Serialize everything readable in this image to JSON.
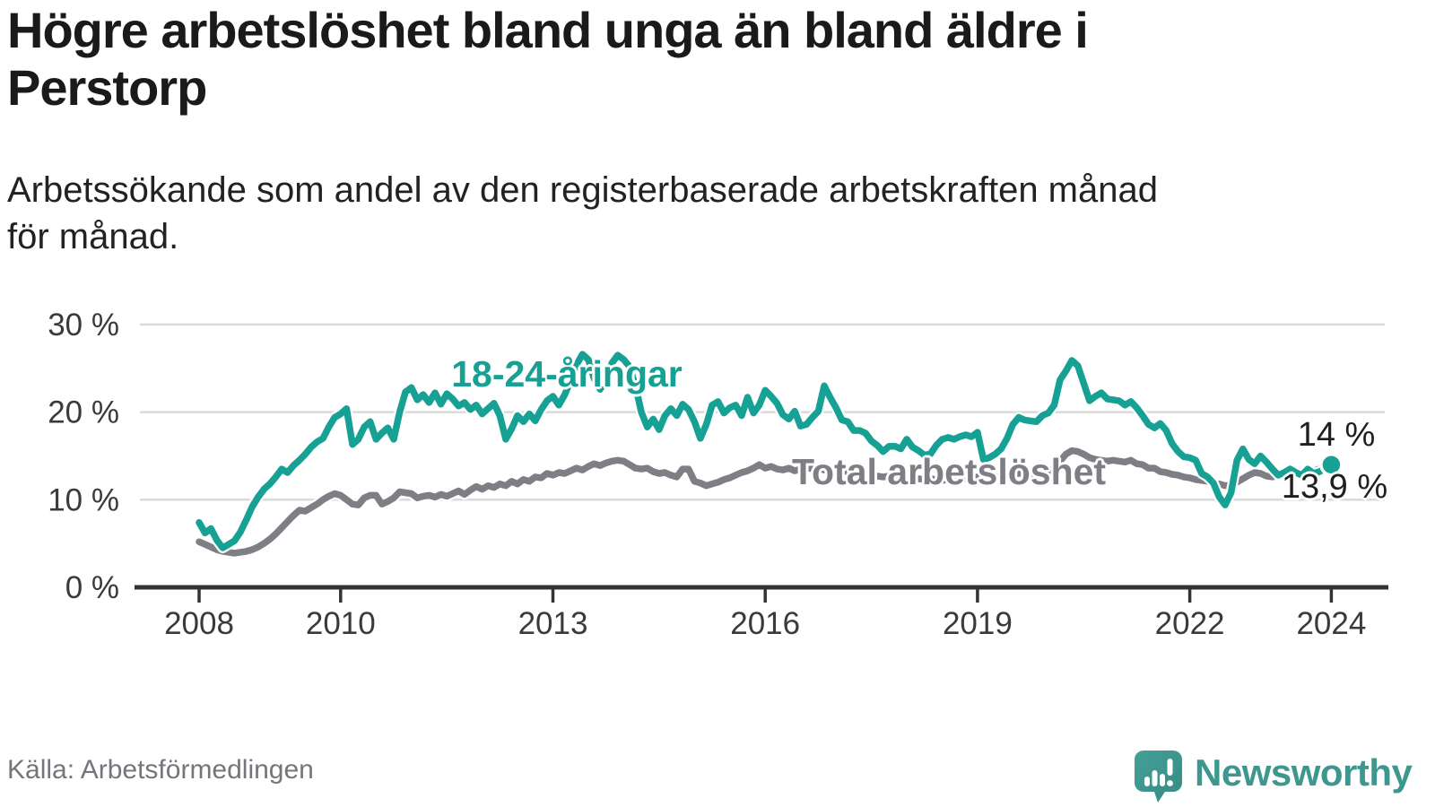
{
  "title": {
    "line1": "Högre arbetslöshet bland unga än bland äldre i",
    "line2": "Perstorp"
  },
  "subtitle": {
    "line1": "Arbetssökande som andel av den registerbaserade arbetskraften månad",
    "line2": "för månad."
  },
  "source": "Källa: Arbetsförmedlingen",
  "logo": {
    "text": "Newsworthy",
    "color": "#3e978f"
  },
  "colors": {
    "young_line": "#17a195",
    "total_line": "#7e7e84",
    "gridline": "#dadada",
    "axis": "#333333",
    "axis_text": "#3a3a3a",
    "end_label_text": "#1f1f1f"
  },
  "chart_data": {
    "type": "line",
    "unit": "%",
    "x_start": "2008-01",
    "x_end": "2024-01",
    "points_interval": "monthly",
    "x_ticks": [
      2008,
      2010,
      2013,
      2016,
      2019,
      2022,
      2024
    ],
    "x_tick_labels": [
      "2008",
      "2010",
      "2013",
      "2016",
      "2019",
      "2022",
      "2024"
    ],
    "y_ticks": [
      0,
      10,
      20,
      30
    ],
    "y_tick_labels": [
      "0 %",
      "10 %",
      "20 %",
      "30 %"
    ],
    "ylim": [
      0,
      30
    ],
    "grid": "horizontal-only",
    "legend_position": "inline-labels",
    "series": [
      {
        "name": "18-24-åringar",
        "color": "#17a195",
        "end_label": "14 %",
        "end_value": 14.0,
        "end_dot": true,
        "values": [
          7.4,
          6.2,
          6.7,
          5.4,
          4.5,
          4.9,
          5.3,
          6.3,
          7.7,
          9.2,
          10.3,
          11.2,
          11.8,
          12.6,
          13.5,
          13.1,
          13.9,
          14.5,
          15.2,
          16.0,
          16.6,
          17.0,
          18.3,
          19.4,
          19.8,
          20.4,
          16.3,
          16.9,
          18.3,
          18.9,
          16.9,
          17.6,
          18.2,
          16.9,
          20.0,
          22.3,
          22.8,
          21.4,
          22.0,
          21.1,
          22.2,
          20.9,
          22.1,
          21.5,
          20.7,
          21.1,
          20.3,
          20.8,
          19.8,
          20.4,
          21.0,
          19.6,
          16.9,
          18.1,
          19.6,
          18.9,
          19.8,
          19.0,
          20.3,
          21.3,
          21.8,
          20.8,
          22.0,
          23.6,
          25.4,
          26.6,
          26.0,
          23.8,
          22.6,
          23.8,
          25.6,
          26.5,
          26.0,
          25.2,
          23.0,
          20.0,
          18.3,
          19.2,
          18.0,
          19.6,
          20.4,
          19.6,
          20.9,
          20.3,
          18.9,
          17.0,
          18.6,
          20.8,
          21.2,
          19.9,
          20.5,
          20.8,
          19.6,
          21.7,
          19.9,
          20.8,
          22.5,
          21.8,
          21.0,
          19.7,
          19.2,
          20.1,
          18.4,
          18.6,
          19.4,
          20.1,
          23.0,
          21.7,
          20.5,
          19.1,
          18.9,
          17.9,
          17.9,
          17.6,
          16.7,
          16.2,
          15.5,
          16.1,
          16.1,
          15.8,
          16.9,
          16.0,
          15.6,
          15.1,
          15.2,
          16.2,
          16.9,
          17.1,
          16.9,
          17.2,
          17.4,
          17.2,
          17.7,
          14.6,
          14.8,
          15.2,
          15.8,
          17.0,
          18.6,
          19.4,
          19.1,
          19.0,
          18.9,
          19.6,
          19.9,
          20.8,
          23.7,
          24.7,
          25.9,
          25.3,
          23.3,
          21.3,
          21.8,
          22.2,
          21.5,
          21.4,
          21.3,
          20.8,
          21.2,
          20.5,
          19.6,
          18.6,
          18.2,
          18.7,
          17.9,
          16.4,
          15.5,
          14.9,
          14.8,
          14.5,
          13.0,
          12.6,
          11.9,
          10.3,
          9.4,
          10.8,
          14.5,
          15.8,
          14.6,
          14.1,
          15.0,
          14.3,
          13.5,
          12.8,
          13.1,
          13.5,
          13.1,
          12.8,
          13.5,
          13.0,
          13.2,
          13.6,
          14.0
        ]
      },
      {
        "name": "Total arbetslöshet",
        "color": "#7e7e84",
        "end_label": "13,9 %",
        "end_value": 13.9,
        "end_dot": false,
        "values": [
          5.2,
          4.9,
          4.6,
          4.3,
          4.1,
          4.0,
          3.9,
          4.0,
          4.1,
          4.3,
          4.6,
          5.0,
          5.5,
          6.1,
          6.8,
          7.5,
          8.2,
          8.8,
          8.7,
          9.1,
          9.5,
          10.0,
          10.4,
          10.7,
          10.5,
          10.0,
          9.5,
          9.4,
          10.2,
          10.5,
          10.5,
          9.5,
          9.8,
          10.2,
          10.9,
          10.8,
          10.7,
          10.2,
          10.4,
          10.5,
          10.3,
          10.6,
          10.4,
          10.7,
          11.0,
          10.6,
          11.1,
          11.5,
          11.2,
          11.6,
          11.4,
          11.8,
          11.6,
          12.1,
          11.8,
          12.3,
          12.1,
          12.6,
          12.5,
          13.0,
          12.8,
          13.1,
          13.0,
          13.3,
          13.6,
          13.4,
          13.8,
          14.1,
          13.9,
          14.2,
          14.4,
          14.5,
          14.4,
          14.0,
          13.6,
          13.5,
          13.6,
          13.2,
          13.0,
          13.1,
          12.8,
          12.6,
          13.5,
          13.5,
          12.1,
          11.9,
          11.6,
          11.8,
          12.0,
          12.3,
          12.5,
          12.8,
          13.1,
          13.3,
          13.6,
          14.0,
          13.6,
          13.8,
          13.5,
          13.4,
          13.6,
          13.3,
          13.5,
          13.7,
          13.5,
          13.6,
          13.4,
          13.5,
          13.4,
          13.3,
          13.2,
          13.0,
          12.9,
          12.8,
          12.7,
          12.7,
          12.6,
          12.7,
          12.8,
          12.7,
          12.6,
          12.5,
          12.4,
          12.3,
          12.4,
          12.3,
          12.2,
          12.3,
          12.4,
          12.3,
          12.4,
          12.5,
          12.6,
          12.4,
          12.5,
          12.6,
          12.7,
          12.8,
          12.9,
          13.0,
          13.1,
          13.0,
          13.1,
          13.2,
          13.3,
          13.5,
          14.4,
          15.2,
          15.6,
          15.5,
          15.2,
          14.8,
          14.6,
          14.5,
          14.4,
          14.5,
          14.4,
          14.3,
          14.5,
          14.1,
          14.0,
          13.6,
          13.6,
          13.2,
          13.1,
          12.9,
          12.8,
          12.6,
          12.5,
          12.3,
          12.2,
          12.1,
          11.9,
          11.8,
          11.6,
          11.7,
          12.0,
          12.4,
          12.8,
          13.1,
          13.0,
          12.7,
          12.6,
          12.8,
          12.7,
          12.9,
          13.0,
          12.8,
          13.1,
          13.3,
          13.5,
          13.7,
          13.9
        ]
      }
    ]
  }
}
